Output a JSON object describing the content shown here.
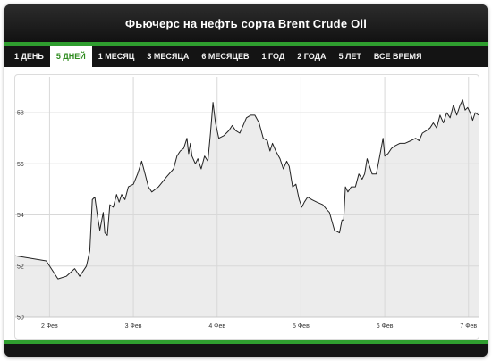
{
  "header": {
    "title": "Фьючерс на нефть сорта Brent Crude Oil"
  },
  "tabs": [
    {
      "label": "1 ДЕНЬ",
      "active": false
    },
    {
      "label": "5 ДНЕЙ",
      "active": true
    },
    {
      "label": "1 МЕСЯЦ",
      "active": false
    },
    {
      "label": "3 МЕСЯЦА",
      "active": false
    },
    {
      "label": "6 МЕСЯЦЕВ",
      "active": false
    },
    {
      "label": "1 ГОД",
      "active": false
    },
    {
      "label": "2 ГОДА",
      "active": false
    },
    {
      "label": "5 ЛЕТ",
      "active": false
    },
    {
      "label": "ВСЕ ВРЕМЯ",
      "active": false
    }
  ],
  "colors": {
    "accent_green": "#2f9e2f",
    "active_tab_text": "#2e8b1e",
    "line": "#222222",
    "area_fill": "#ececec",
    "grid": "#d8d8d8"
  },
  "chart_data": {
    "type": "area",
    "title": "Фьючерс на нефть сорта Brent Crude Oil",
    "xlabel": "",
    "ylabel": "",
    "grid": true,
    "xlim": [
      1.59,
      7.12
    ],
    "ylim": [
      50,
      59.4
    ],
    "x_ticks": [
      {
        "value": 2.0,
        "label": "2 Фев"
      },
      {
        "value": 3.0,
        "label": "3 Фев"
      },
      {
        "value": 4.0,
        "label": "4 Фев"
      },
      {
        "value": 5.0,
        "label": "5 Фев"
      },
      {
        "value": 6.0,
        "label": "6 Фев"
      },
      {
        "value": 7.0,
        "label": "7 Фев"
      }
    ],
    "y_ticks": [
      {
        "value": 50,
        "label": "50"
      },
      {
        "value": 52,
        "label": "52"
      },
      {
        "value": 54,
        "label": "54"
      },
      {
        "value": 56,
        "label": "56"
      },
      {
        "value": 58,
        "label": "58"
      }
    ],
    "series": [
      {
        "points": [
          [
            1.59,
            52.4
          ],
          [
            1.96,
            52.2
          ],
          [
            2.1,
            51.5
          ],
          [
            2.2,
            51.6
          ],
          [
            2.3,
            51.9
          ],
          [
            2.36,
            51.6
          ],
          [
            2.44,
            52.0
          ],
          [
            2.48,
            52.6
          ],
          [
            2.51,
            54.6
          ],
          [
            2.54,
            54.7
          ],
          [
            2.57,
            54.0
          ],
          [
            2.6,
            53.4
          ],
          [
            2.64,
            54.1
          ],
          [
            2.66,
            53.3
          ],
          [
            2.69,
            53.2
          ],
          [
            2.72,
            54.4
          ],
          [
            2.76,
            54.3
          ],
          [
            2.8,
            54.8
          ],
          [
            2.83,
            54.5
          ],
          [
            2.86,
            54.8
          ],
          [
            2.9,
            54.6
          ],
          [
            2.94,
            55.1
          ],
          [
            3.0,
            55.2
          ],
          [
            3.05,
            55.6
          ],
          [
            3.1,
            56.1
          ],
          [
            3.14,
            55.6
          ],
          [
            3.18,
            55.1
          ],
          [
            3.22,
            54.9
          ],
          [
            3.3,
            55.1
          ],
          [
            3.4,
            55.5
          ],
          [
            3.48,
            55.8
          ],
          [
            3.52,
            56.3
          ],
          [
            3.56,
            56.5
          ],
          [
            3.6,
            56.6
          ],
          [
            3.64,
            57.0
          ],
          [
            3.66,
            56.4
          ],
          [
            3.68,
            56.8
          ],
          [
            3.7,
            56.3
          ],
          [
            3.74,
            56.0
          ],
          [
            3.77,
            56.2
          ],
          [
            3.81,
            55.8
          ],
          [
            3.85,
            56.3
          ],
          [
            3.89,
            56.1
          ],
          [
            3.92,
            57.2
          ],
          [
            3.95,
            58.4
          ],
          [
            3.98,
            57.6
          ],
          [
            4.02,
            57.0
          ],
          [
            4.08,
            57.1
          ],
          [
            4.14,
            57.3
          ],
          [
            4.18,
            57.5
          ],
          [
            4.22,
            57.3
          ],
          [
            4.27,
            57.2
          ],
          [
            4.31,
            57.5
          ],
          [
            4.35,
            57.8
          ],
          [
            4.4,
            57.9
          ],
          [
            4.45,
            57.9
          ],
          [
            4.5,
            57.6
          ],
          [
            4.55,
            57.0
          ],
          [
            4.6,
            56.9
          ],
          [
            4.63,
            56.5
          ],
          [
            4.66,
            56.8
          ],
          [
            4.7,
            56.5
          ],
          [
            4.75,
            56.2
          ],
          [
            4.79,
            55.8
          ],
          [
            4.83,
            56.1
          ],
          [
            4.86,
            55.9
          ],
          [
            4.9,
            55.1
          ],
          [
            4.94,
            55.2
          ],
          [
            4.98,
            54.6
          ],
          [
            5.01,
            54.3
          ],
          [
            5.04,
            54.5
          ],
          [
            5.08,
            54.7
          ],
          [
            5.13,
            54.6
          ],
          [
            5.19,
            54.5
          ],
          [
            5.26,
            54.4
          ],
          [
            5.31,
            54.2
          ],
          [
            5.34,
            54.1
          ],
          [
            5.4,
            53.4
          ],
          [
            5.46,
            53.3
          ],
          [
            5.49,
            53.8
          ],
          [
            5.51,
            53.8
          ],
          [
            5.53,
            55.1
          ],
          [
            5.56,
            54.9
          ],
          [
            5.6,
            55.1
          ],
          [
            5.65,
            55.1
          ],
          [
            5.69,
            55.6
          ],
          [
            5.73,
            55.4
          ],
          [
            5.76,
            55.6
          ],
          [
            5.79,
            56.2
          ],
          [
            5.82,
            55.9
          ],
          [
            5.85,
            55.6
          ],
          [
            5.9,
            55.6
          ],
          [
            5.94,
            56.3
          ],
          [
            5.98,
            57.0
          ],
          [
            6.0,
            56.3
          ],
          [
            6.04,
            56.4
          ],
          [
            6.08,
            56.6
          ],
          [
            6.12,
            56.7
          ],
          [
            6.18,
            56.8
          ],
          [
            6.24,
            56.8
          ],
          [
            6.31,
            56.9
          ],
          [
            6.37,
            57.0
          ],
          [
            6.41,
            56.9
          ],
          [
            6.45,
            57.2
          ],
          [
            6.5,
            57.3
          ],
          [
            6.54,
            57.4
          ],
          [
            6.58,
            57.6
          ],
          [
            6.62,
            57.4
          ],
          [
            6.66,
            57.9
          ],
          [
            6.7,
            57.6
          ],
          [
            6.74,
            58.0
          ],
          [
            6.78,
            57.8
          ],
          [
            6.82,
            58.3
          ],
          [
            6.86,
            57.9
          ],
          [
            6.9,
            58.3
          ],
          [
            6.93,
            58.5
          ],
          [
            6.96,
            58.1
          ],
          [
            6.99,
            58.2
          ],
          [
            7.02,
            58.0
          ],
          [
            7.05,
            57.7
          ],
          [
            7.08,
            58.0
          ],
          [
            7.12,
            57.9
          ]
        ]
      }
    ]
  }
}
